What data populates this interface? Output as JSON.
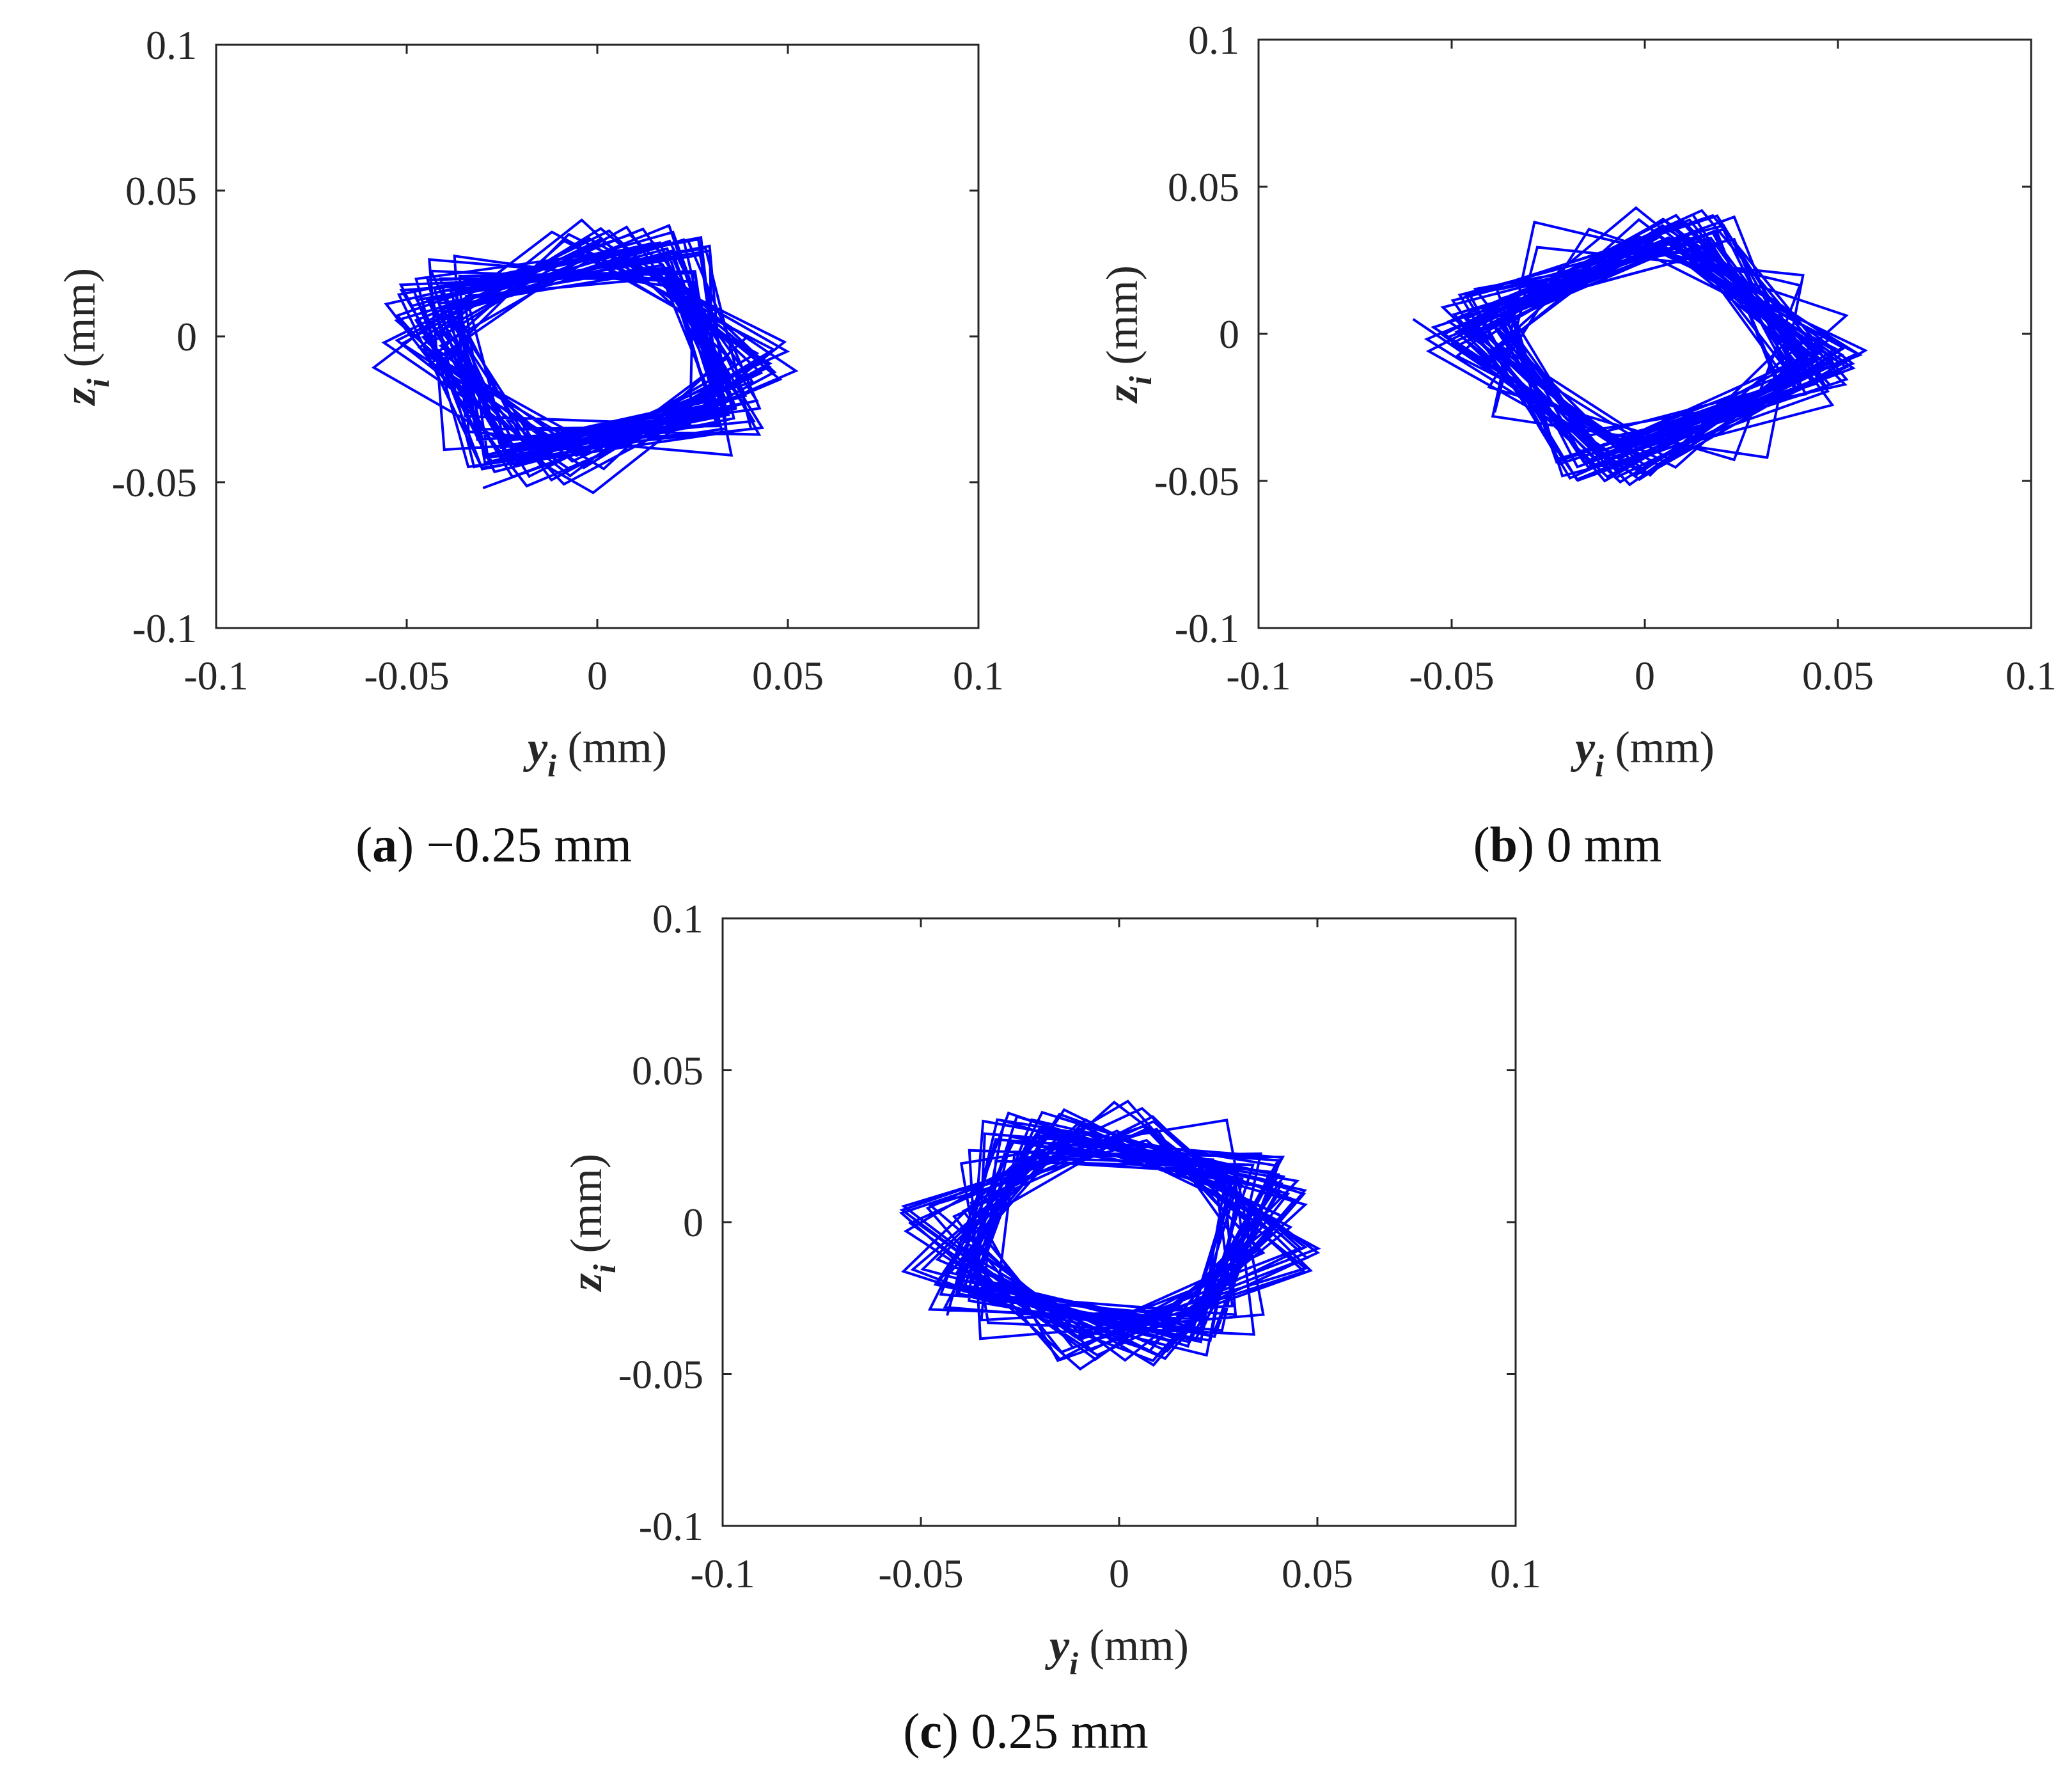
{
  "colors": {
    "trace": "#0000ff",
    "axis": "#262626",
    "background": "#ffffff"
  },
  "chart_data": [
    {
      "type": "line",
      "caption": {
        "letter": "a",
        "text": "−0.25 mm"
      },
      "xlabel": {
        "symbol": "y",
        "subscript": "i",
        "unit": "(mm)"
      },
      "ylabel": {
        "symbol": "z",
        "subscript": "i",
        "unit": "(mm)"
      },
      "xlim": [
        -0.1,
        0.1
      ],
      "ylim": [
        -0.1,
        0.1
      ],
      "xticks": [
        "-0.1",
        "-0.05",
        "0",
        "0.05",
        "0.1"
      ],
      "yticks": [
        "-0.1",
        "-0.05",
        "0",
        "0.05",
        "0.1"
      ],
      "grid": false,
      "orbit": {
        "center": [
          -0.003,
          -0.006
        ],
        "inner_radius": 0.024,
        "outer_radius": 0.052,
        "max_excursion": 0.06,
        "start": [
          -0.03,
          -0.052
        ]
      }
    },
    {
      "type": "line",
      "caption": {
        "letter": "b",
        "text": "0 mm"
      },
      "xlabel": {
        "symbol": "y",
        "subscript": "i",
        "unit": "(mm)"
      },
      "ylabel": {
        "symbol": "z",
        "subscript": "i",
        "unit": "(mm)"
      },
      "xlim": [
        -0.1,
        0.1
      ],
      "ylim": [
        -0.1,
        0.1
      ],
      "xticks": [
        "-0.1",
        "-0.05",
        "0",
        "0.05",
        "0.1"
      ],
      "yticks": [
        "-0.1",
        "-0.05",
        "0",
        "0.05",
        "0.1"
      ],
      "grid": false,
      "orbit": {
        "center": [
          0.0,
          -0.004
        ],
        "inner_radius": 0.025,
        "outer_radius": 0.053,
        "max_excursion": 0.062,
        "start": [
          -0.06,
          0.005
        ]
      }
    },
    {
      "type": "line",
      "caption": {
        "letter": "c",
        "text": "0.25 mm"
      },
      "xlabel": {
        "symbol": "y",
        "subscript": "i",
        "unit": "(mm)"
      },
      "ylabel": {
        "symbol": "z",
        "subscript": "i",
        "unit": "(mm)"
      },
      "xlim": [
        -0.1,
        0.1
      ],
      "ylim": [
        -0.1,
        0.1
      ],
      "xticks": [
        "-0.1",
        "-0.05",
        "0",
        "0.05",
        "0.1"
      ],
      "yticks": [
        "-0.1",
        "-0.05",
        "0",
        "0.05",
        "0.1"
      ],
      "grid": false,
      "orbit": {
        "center": [
          -0.003,
          -0.004
        ],
        "inner_radius": 0.024,
        "outer_radius": 0.05,
        "max_excursion": 0.06,
        "start": [
          -0.053,
          0.0
        ]
      }
    }
  ]
}
